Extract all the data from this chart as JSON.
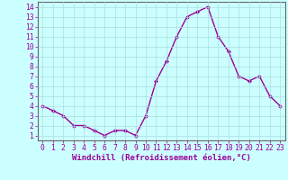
{
  "x": [
    0,
    1,
    2,
    3,
    4,
    5,
    6,
    7,
    8,
    9,
    10,
    11,
    12,
    13,
    14,
    15,
    16,
    17,
    18,
    19,
    20,
    21,
    22,
    23
  ],
  "y": [
    4.0,
    3.5,
    3.0,
    2.0,
    2.0,
    1.5,
    1.0,
    1.5,
    1.5,
    1.0,
    3.0,
    6.5,
    8.5,
    11.0,
    13.0,
    13.5,
    14.0,
    11.0,
    9.5,
    7.0,
    6.5,
    7.0,
    5.0,
    4.0
  ],
  "xlabel": "Windchill (Refroidissement éolien,°C)",
  "xlim": [
    -0.5,
    23.5
  ],
  "ylim": [
    0.5,
    14.5
  ],
  "yticks": [
    1,
    2,
    3,
    4,
    5,
    6,
    7,
    8,
    9,
    10,
    11,
    12,
    13,
    14
  ],
  "xticks": [
    0,
    1,
    2,
    3,
    4,
    5,
    6,
    7,
    8,
    9,
    10,
    11,
    12,
    13,
    14,
    15,
    16,
    17,
    18,
    19,
    20,
    21,
    22,
    23
  ],
  "line_color": "#990099",
  "marker": "D",
  "marker_size": 2.2,
  "bg_color": "#ccffff",
  "grid_color": "#aadddd",
  "axis_label_color": "#990099",
  "tick_label_color": "#990099",
  "xlabel_fontsize": 6.5,
  "tick_fontsize": 5.8,
  "line_width": 1.0
}
